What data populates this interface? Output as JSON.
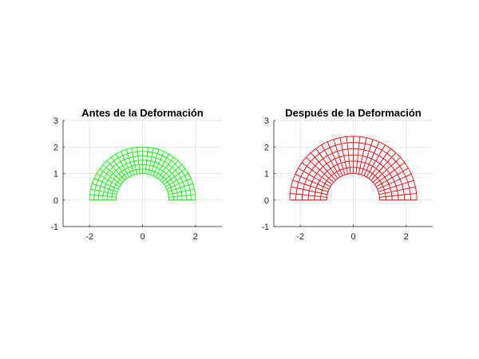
{
  "chart_data": [
    {
      "type": "mesh",
      "title": "Antes de la Deformación",
      "color": "#00ff00",
      "inner_radius": 1,
      "outer_radius": 2,
      "radial_divisions": 6,
      "angular_divisions": 30,
      "angle_range_deg": [
        0,
        180
      ],
      "xlim": [
        -3,
        3
      ],
      "ylim": [
        -1,
        3
      ],
      "xticks": [
        -2,
        0,
        2
      ],
      "yticks": [
        -1,
        0,
        1,
        2,
        3
      ],
      "xtick_labels": [
        "-2",
        "0",
        "2"
      ],
      "ytick_labels": [
        "-1",
        "0",
        "1",
        "2",
        "3"
      ],
      "grid": true
    },
    {
      "type": "mesh",
      "title": "Después de la Deformación",
      "color": "#ff0000",
      "inner_radius": 1,
      "outer_radius": 2.4,
      "radial_divisions": 6,
      "angular_divisions": 30,
      "angle_range_deg": [
        0,
        180
      ],
      "xlim": [
        -3,
        3
      ],
      "ylim": [
        -1,
        3
      ],
      "xticks": [
        -2,
        0,
        2
      ],
      "yticks": [
        -1,
        0,
        1,
        2,
        3
      ],
      "xtick_labels": [
        "-2",
        "0",
        "2"
      ],
      "ytick_labels": [
        "-1",
        "0",
        "1",
        "2",
        "3"
      ],
      "grid": true
    }
  ]
}
